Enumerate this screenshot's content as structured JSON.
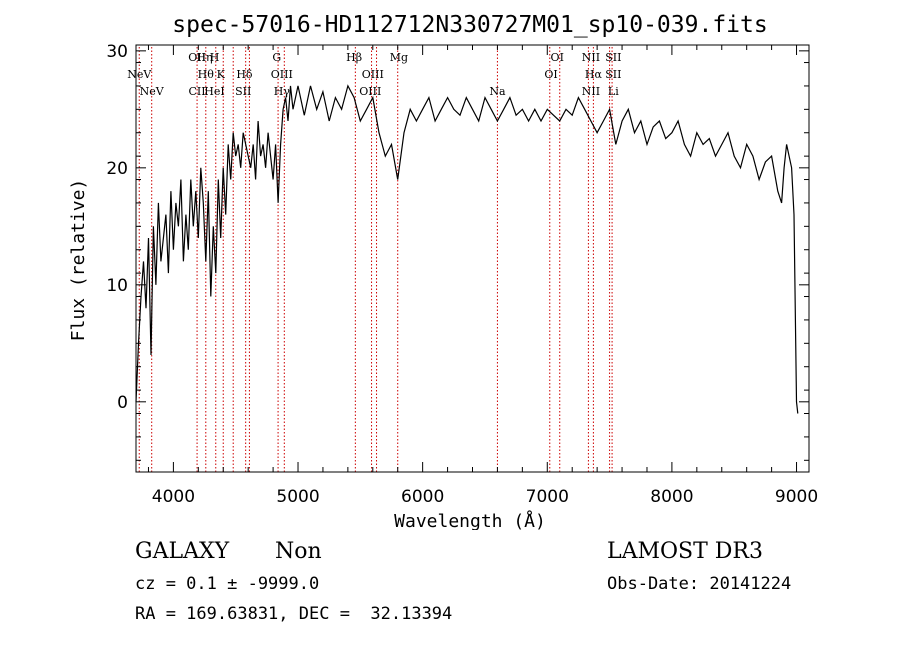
{
  "chart_data": {
    "type": "line",
    "title": "spec-57016-HD112712N330727M01_sp10-039.fits",
    "xlabel": "Wavelength (Å)",
    "ylabel": "Flux (relative)",
    "xlim": [
      3700,
      9100
    ],
    "ylim": [
      -6,
      30.5
    ],
    "xticks": [
      4000,
      5000,
      6000,
      7000,
      8000,
      9000
    ],
    "yticks": [
      0,
      10,
      20,
      30
    ],
    "grid": false,
    "series": [
      {
        "name": "spectrum",
        "x": [
          3700,
          3720,
          3740,
          3760,
          3780,
          3800,
          3820,
          3840,
          3860,
          3880,
          3900,
          3920,
          3940,
          3960,
          3980,
          4000,
          4020,
          4040,
          4060,
          4080,
          4100,
          4120,
          4140,
          4160,
          4180,
          4200,
          4220,
          4240,
          4260,
          4280,
          4300,
          4320,
          4340,
          4360,
          4380,
          4400,
          4420,
          4440,
          4460,
          4480,
          4500,
          4520,
          4540,
          4560,
          4580,
          4600,
          4620,
          4640,
          4660,
          4680,
          4700,
          4720,
          4740,
          4760,
          4780,
          4800,
          4820,
          4840,
          4860,
          4880,
          4900,
          4920,
          4940,
          4960,
          4980,
          5000,
          5050,
          5100,
          5150,
          5200,
          5250,
          5300,
          5350,
          5400,
          5450,
          5500,
          5550,
          5600,
          5650,
          5700,
          5750,
          5800,
          5850,
          5900,
          5950,
          6000,
          6050,
          6100,
          6150,
          6200,
          6250,
          6300,
          6350,
          6400,
          6450,
          6500,
          6550,
          6600,
          6650,
          6700,
          6750,
          6800,
          6850,
          6900,
          6950,
          7000,
          7050,
          7100,
          7150,
          7200,
          7250,
          7300,
          7350,
          7400,
          7450,
          7500,
          7550,
          7600,
          7650,
          7700,
          7750,
          7800,
          7850,
          7900,
          7950,
          8000,
          8050,
          8100,
          8150,
          8200,
          8250,
          8300,
          8350,
          8400,
          8450,
          8500,
          8550,
          8600,
          8650,
          8700,
          8750,
          8800,
          8850,
          8880,
          8900,
          8920,
          8940,
          8960,
          8980,
          9000,
          9010
        ],
        "y": [
          0,
          5,
          9,
          12,
          8,
          14,
          4,
          15,
          10,
          17,
          12,
          14,
          16,
          11,
          18,
          13,
          17,
          15,
          19,
          12,
          16,
          13,
          19,
          15,
          18,
          14,
          20,
          17,
          12,
          18,
          9,
          15,
          11,
          19,
          14,
          20,
          16,
          22,
          19,
          23,
          21,
          22,
          20,
          23,
          22,
          21,
          20,
          22,
          19,
          24,
          21,
          22,
          20,
          23,
          21,
          19,
          22,
          17,
          22,
          25,
          26,
          24,
          27,
          25,
          26,
          27,
          24.5,
          27,
          25,
          26.5,
          24,
          26,
          25,
          27,
          26,
          24,
          25,
          26,
          23,
          21,
          22,
          19,
          23,
          25,
          24,
          25,
          26,
          24,
          25,
          26,
          25,
          24.5,
          26,
          25,
          24,
          26,
          25,
          24,
          25,
          26,
          24.5,
          25,
          24,
          25,
          24,
          25,
          24.5,
          24,
          25,
          24.5,
          26,
          25,
          24,
          23,
          24,
          25,
          22,
          24,
          25,
          23,
          24,
          22,
          23.5,
          24,
          22.5,
          23,
          24,
          22,
          21,
          23,
          22,
          22.5,
          21,
          22,
          23,
          21,
          20,
          22,
          21,
          19,
          20.5,
          21,
          18,
          17,
          20,
          22,
          21,
          20,
          16,
          0,
          -1
        ]
      }
    ],
    "lines": [
      {
        "label": "NeV",
        "wave": 3726,
        "row": 1
      },
      {
        "label": "NeV",
        "wave": 3826,
        "row": 2
      },
      {
        "label": "OII",
        "wave": 4190,
        "row": 0
      },
      {
        "label": "Hη",
        "wave": 4250,
        "row": 0
      },
      {
        "label": "H",
        "wave": 4330,
        "row": 0
      },
      {
        "label": "CII",
        "wave": 4190,
        "row": 2
      },
      {
        "label": "Hθ",
        "wave": 4260,
        "row": 1
      },
      {
        "label": "HeI",
        "wave": 4330,
        "row": 2
      },
      {
        "label": "K",
        "wave": 4380,
        "row": 1
      },
      {
        "label": "Hδ",
        "wave": 4570,
        "row": 1
      },
      {
        "label": "SII",
        "wave": 4560,
        "row": 2
      },
      {
        "label": "G",
        "wave": 4830,
        "row": 0
      },
      {
        "label": "OIII",
        "wave": 4870,
        "row": 1
      },
      {
        "label": "Hγ",
        "wave": 4870,
        "row": 2
      },
      {
        "label": "Hβ",
        "wave": 5450,
        "row": 0
      },
      {
        "label": "OIII",
        "wave": 5600,
        "row": 1
      },
      {
        "label": "OIII",
        "wave": 5580,
        "row": 2
      },
      {
        "label": "Mg",
        "wave": 5810,
        "row": 0
      },
      {
        "label": "Na",
        "wave": 6600,
        "row": 2
      },
      {
        "label": "OI",
        "wave": 7080,
        "row": 0
      },
      {
        "label": "OI",
        "wave": 7030,
        "row": 1
      },
      {
        "label": "NII",
        "wave": 7350,
        "row": 0
      },
      {
        "label": "SII",
        "wave": 7530,
        "row": 0
      },
      {
        "label": "Hα",
        "wave": 7370,
        "row": 1
      },
      {
        "label": "SII",
        "wave": 7530,
        "row": 1
      },
      {
        "label": "NII",
        "wave": 7350,
        "row": 2
      },
      {
        "label": "Li",
        "wave": 7530,
        "row": 2
      }
    ],
    "marker_lines": [
      3726,
      3826,
      4190,
      4260,
      4340,
      4400,
      4480,
      4580,
      4610,
      4840,
      4890,
      5460,
      5590,
      5630,
      5800,
      6600,
      7020,
      7100,
      7330,
      7370,
      7500,
      7520
    ],
    "line_color": "#cc0000",
    "series_color": "#000000"
  },
  "info": {
    "class_label": "GALAXY",
    "subclass": "Non",
    "survey": "LAMOST DR3",
    "cz_line": "cz = 0.1 ± -9999.0",
    "obs_date": "Obs-Date: 20141224",
    "coords": "RA = 169.63831, DEC =  32.13394"
  }
}
